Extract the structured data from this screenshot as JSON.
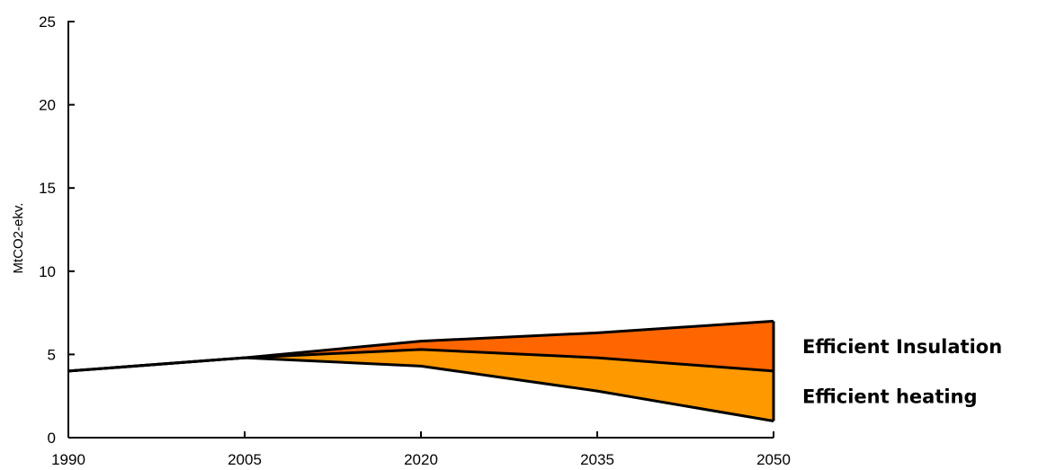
{
  "chart_data": {
    "type": "area",
    "x": [
      1990,
      2005,
      2020,
      2035,
      2050
    ],
    "xtick_labels": [
      "1990",
      "2005",
      "2020",
      "2035",
      "2050"
    ],
    "ylabel": "MtCO2-ekv.",
    "ylim": [
      0,
      25
    ],
    "yticks": [
      0,
      5,
      10,
      15,
      20,
      25
    ],
    "ytick_labels": [
      "0",
      "5",
      "10",
      "15",
      "20",
      "25"
    ],
    "grid": false,
    "boundaries": {
      "top": [
        4.0,
        4.8,
        5.8,
        6.3,
        7.0
      ],
      "middle": [
        4.0,
        4.8,
        5.3,
        4.8,
        4.0
      ],
      "bottom": [
        4.0,
        4.8,
        4.3,
        2.8,
        1.0
      ]
    },
    "series": [
      {
        "name": "Efficient Insulation",
        "color": "#FF6600",
        "upper": "top",
        "lower": "middle"
      },
      {
        "name": "Efficient heating",
        "color": "#FF9900",
        "upper": "middle",
        "lower": "bottom"
      }
    ]
  }
}
